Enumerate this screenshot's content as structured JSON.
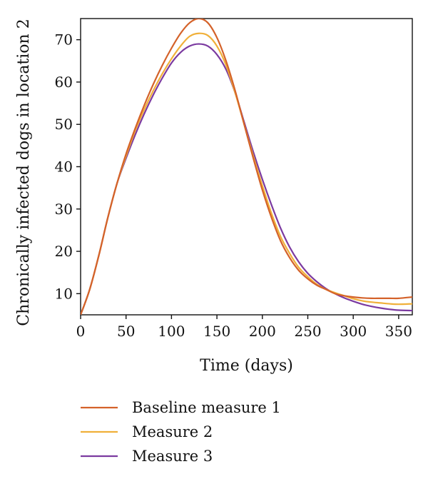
{
  "chart_data": {
    "type": "line",
    "title": "",
    "xlabel": "Time (days)",
    "ylabel": "Chronically infected dogs in location 2",
    "xlim": [
      0,
      365
    ],
    "ylim": [
      5,
      75
    ],
    "xticks": [
      0,
      50,
      100,
      150,
      200,
      250,
      300,
      350
    ],
    "yticks": [
      10,
      20,
      30,
      40,
      50,
      60,
      70
    ],
    "grid": false,
    "legend_position": "bottom",
    "series": [
      {
        "name": "Baseline measure 1",
        "color": "#d4622a",
        "x": [
          0,
          10,
          20,
          30,
          40,
          50,
          60,
          70,
          80,
          90,
          100,
          110,
          120,
          130,
          140,
          150,
          160,
          170,
          180,
          190,
          200,
          210,
          220,
          230,
          240,
          250,
          260,
          270,
          280,
          290,
          300,
          310,
          320,
          330,
          340,
          350,
          365
        ],
        "values": [
          5,
          11,
          19,
          28,
          36,
          43,
          49,
          54.5,
          59.5,
          64,
          68,
          71.5,
          74,
          75,
          74,
          70.5,
          65,
          58,
          50,
          42,
          34.5,
          28,
          22.5,
          18.5,
          15.5,
          13.5,
          12,
          11,
          10,
          9.5,
          9.2,
          9,
          8.9,
          8.9,
          8.9,
          8.9,
          9.2
        ]
      },
      {
        "name": "Measure 2",
        "color": "#f0b03a",
        "x": [
          0,
          10,
          20,
          30,
          40,
          50,
          60,
          70,
          80,
          90,
          100,
          110,
          120,
          130,
          140,
          150,
          160,
          170,
          180,
          190,
          200,
          210,
          220,
          230,
          240,
          250,
          260,
          270,
          280,
          290,
          300,
          310,
          320,
          330,
          340,
          350,
          365
        ],
        "values": [
          5,
          11,
          19,
          28,
          36,
          42.5,
          48.5,
          53.5,
          58,
          62,
          65.5,
          68.5,
          70.8,
          71.5,
          71,
          68.5,
          64,
          57.5,
          50,
          42.5,
          35.5,
          29,
          23.5,
          19.5,
          16.2,
          14,
          12.2,
          11,
          10.2,
          9.5,
          8.8,
          8.3,
          8,
          7.8,
          7.6,
          7.5,
          7.6
        ]
      },
      {
        "name": "Measure 3",
        "color": "#7b3aa0",
        "x": [
          0,
          10,
          20,
          30,
          40,
          50,
          60,
          70,
          80,
          90,
          100,
          110,
          120,
          130,
          140,
          150,
          160,
          170,
          180,
          190,
          200,
          210,
          220,
          230,
          240,
          250,
          260,
          270,
          280,
          290,
          300,
          310,
          320,
          330,
          340,
          350,
          365
        ],
        "values": [
          5,
          11,
          19,
          28,
          36,
          42,
          47.5,
          52.5,
          57,
          61,
          64.5,
          67,
          68.5,
          69,
          68.5,
          66.5,
          63,
          57.5,
          50.5,
          43.5,
          37,
          31,
          25.5,
          21,
          17.5,
          14.8,
          12.8,
          11.2,
          10,
          9,
          8.2,
          7.5,
          7,
          6.6,
          6.3,
          6.1,
          6
        ]
      }
    ]
  }
}
